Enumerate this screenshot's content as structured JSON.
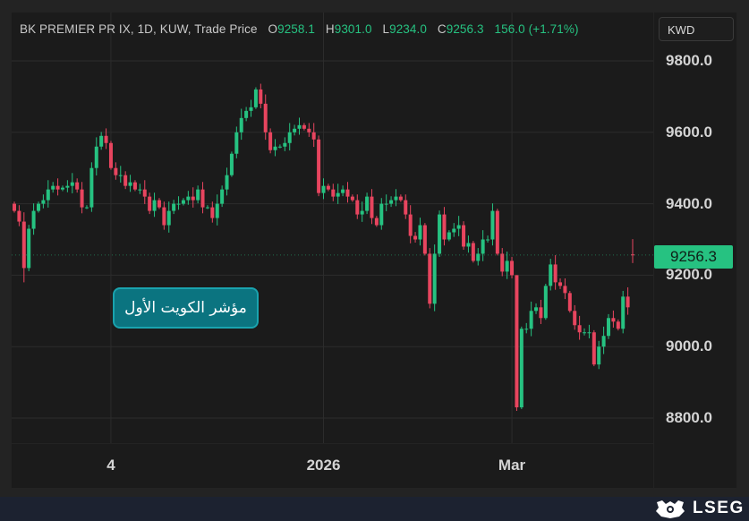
{
  "header": {
    "symbol_info": "BK PREMIER PR IX, 1D, KUW, Trade Price",
    "o_label": "O",
    "o_value": "9258.1",
    "h_label": "H",
    "h_value": "9301.0",
    "l_label": "L",
    "l_value": "9234.0",
    "c_label": "C",
    "c_value": "9256.3",
    "change": "156.0 (+1.71%)"
  },
  "currency_button": "KWD",
  "price_tag": "9256.3",
  "name_label": "مؤشر الكويت الأول",
  "footer": {
    "logo": "LSEG"
  },
  "colors": {
    "up": "#26c281",
    "down": "#e8455f",
    "background": "#1b1b1b",
    "label_box": "#0b7480"
  },
  "chart_data": {
    "type": "candlestick",
    "title": "BK PREMIER PR IX, 1D, KUW, Trade Price",
    "y_ticks": [
      "9800.0",
      "9600.0",
      "9400.0",
      "9200.0",
      "9000.0",
      "8800.0"
    ],
    "y_tick_values": [
      9800,
      9600,
      9400,
      9200,
      9000,
      8800
    ],
    "ylim": [
      8730,
      9970
    ],
    "x_ticks": [
      {
        "label": "4",
        "index": 20
      },
      {
        "label": "2026",
        "index": 64
      },
      {
        "label": "Mar",
        "index": 103
      }
    ],
    "grid": true,
    "close": [
      9380,
      9350,
      9220,
      9330,
      9380,
      9400,
      9410,
      9440,
      9450,
      9440,
      9445,
      9450,
      9460,
      9440,
      9390,
      9390,
      9500,
      9560,
      9590,
      9570,
      9500,
      9480,
      9480,
      9450,
      9460,
      9440,
      9440,
      9420,
      9380,
      9410,
      9390,
      9340,
      9380,
      9400,
      9400,
      9410,
      9420,
      9410,
      9440,
      9390,
      9390,
      9360,
      9400,
      9440,
      9480,
      9540,
      9600,
      9640,
      9660,
      9670,
      9720,
      9680,
      9600,
      9550,
      9560,
      9560,
      9570,
      9600,
      9610,
      9620,
      9610,
      9600,
      9580,
      9430,
      9450,
      9440,
      9420,
      9430,
      9440,
      9420,
      9410,
      9370,
      9380,
      9420,
      9360,
      9340,
      9400,
      9400,
      9410,
      9420,
      9410,
      9370,
      9310,
      9300,
      9340,
      9260,
      9120,
      9260,
      9370,
      9300,
      9320,
      9330,
      9340,
      9280,
      9290,
      9240,
      9260,
      9300,
      9300,
      9380,
      9260,
      9210,
      9240,
      9200,
      8830,
      9050,
      9050,
      9100,
      9110,
      9080,
      9170,
      9230,
      9180,
      9170,
      9150,
      9100,
      9060,
      9040,
      9040,
      9040,
      8950,
      9000,
      9030,
      9080,
      9070,
      9050,
      9140,
      9110,
      9256.3
    ],
    "last_candle": {
      "open": 9258.1,
      "high": 9301.0,
      "low": 9234.0,
      "close": 9256.3
    }
  }
}
